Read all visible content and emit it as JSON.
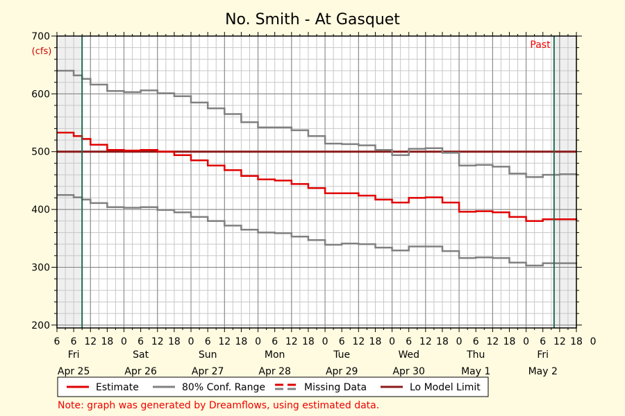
{
  "chart_data": {
    "type": "line",
    "title": "No. Smith - At Gasquet",
    "ylabel": "(cfs)",
    "ylim": [
      195,
      700
    ],
    "yticks": [
      200,
      300,
      400,
      500,
      600,
      700
    ],
    "x_hours_range": [
      0,
      186
    ],
    "hour_tick_labels": [
      "6",
      "12",
      "18",
      "0",
      "6",
      "12",
      "18",
      "0",
      "6",
      "12",
      "18",
      "0",
      "6",
      "12",
      "18",
      "0",
      "6",
      "12",
      "18",
      "0",
      "6",
      "12",
      "18",
      "0",
      "6",
      "12",
      "18",
      "0",
      "6",
      "12",
      "18",
      "0"
    ],
    "days": [
      {
        "weekday": "Fri",
        "date": "Apr 25"
      },
      {
        "weekday": "Sat",
        "date": "Apr 26"
      },
      {
        "weekday": "Sun",
        "date": "Apr 27"
      },
      {
        "weekday": "Mon",
        "date": "Apr 28"
      },
      {
        "weekday": "Tue",
        "date": "Apr 29"
      },
      {
        "weekday": "Wed",
        "date": "Apr 30"
      },
      {
        "weekday": "Thu",
        "date": "May 1"
      },
      {
        "weekday": "Fri",
        "date": "May 2"
      }
    ],
    "past_label": "Past",
    "lo_model_limit": 500,
    "marker_hours": [
      9,
      178
    ],
    "series": [
      {
        "name": "Estimate",
        "color": "#e00000",
        "style": "solid",
        "x": [
          0,
          6,
          9,
          12,
          18,
          24,
          30,
          36,
          42,
          48,
          54,
          60,
          66,
          72,
          78,
          84,
          90,
          96,
          102,
          108,
          114,
          120,
          126,
          132,
          138,
          144,
          150,
          156,
          162,
          168,
          174,
          180,
          186
        ],
        "y": [
          533,
          527,
          522,
          512,
          503,
          502,
          503,
          500,
          494,
          485,
          476,
          468,
          458,
          452,
          450,
          444,
          437,
          428,
          428,
          424,
          417,
          412,
          420,
          421,
          412,
          396,
          397,
          395,
          387,
          380,
          383,
          383,
          381
        ]
      },
      {
        "name": "80% Conf. Range",
        "color": "#808080",
        "style": "solid",
        "x": [
          0,
          6,
          9,
          12,
          18,
          24,
          30,
          36,
          42,
          48,
          54,
          60,
          66,
          72,
          78,
          84,
          90,
          96,
          102,
          108,
          114,
          120,
          126,
          132,
          138,
          144,
          150,
          156,
          162,
          168,
          174,
          180,
          186
        ],
        "y": [
          640,
          632,
          626,
          616,
          605,
          603,
          606,
          601,
          596,
          585,
          575,
          565,
          551,
          542,
          542,
          537,
          527,
          514,
          513,
          511,
          503,
          494,
          505,
          506,
          498,
          476,
          477,
          474,
          462,
          456,
          460,
          461,
          459
        ]
      },
      {
        "name": "80% Conf. Range",
        "color": "#808080",
        "style": "solid",
        "x": [
          0,
          6,
          9,
          12,
          18,
          24,
          30,
          36,
          42,
          48,
          54,
          60,
          66,
          72,
          78,
          84,
          90,
          96,
          102,
          108,
          114,
          120,
          126,
          132,
          138,
          144,
          150,
          156,
          162,
          168,
          174,
          180,
          186
        ],
        "y": [
          425,
          421,
          417,
          411,
          404,
          403,
          404,
          399,
          395,
          387,
          380,
          372,
          365,
          360,
          359,
          353,
          347,
          339,
          341,
          340,
          334,
          329,
          336,
          336,
          328,
          316,
          317,
          316,
          308,
          303,
          307,
          307,
          306
        ]
      }
    ],
    "legend": [
      {
        "label": "Estimate",
        "color": "#e00000",
        "style": "solid"
      },
      {
        "label": "80% Conf. Range",
        "color": "#808080",
        "style": "solid"
      },
      {
        "label": "Missing Data",
        "color": "#e00000",
        "style": "dashed-pair"
      },
      {
        "label": "Lo Model Limit",
        "color": "#8b1a1a",
        "style": "solid"
      }
    ],
    "note": "Note: graph was generated by Dreamflows, using estimated data."
  }
}
